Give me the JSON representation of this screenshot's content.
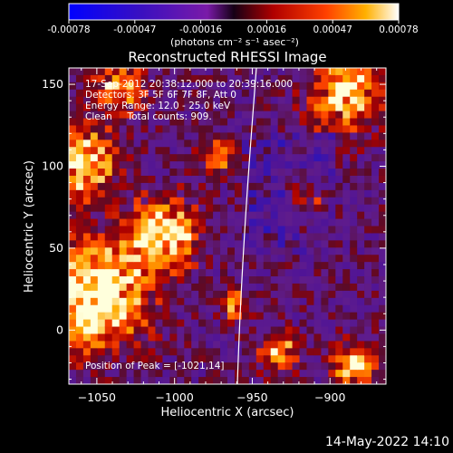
{
  "chart_data": {
    "type": "heatmap",
    "title": "Reconstructed RHESSI Image",
    "xlabel": "Heliocentric X (arcsec)",
    "ylabel": "Heliocentric Y (arcsec)",
    "xlim": [
      -1068,
      -864
    ],
    "ylim": [
      -33,
      160
    ],
    "xticks": [
      -1050,
      -1000,
      -950,
      -900
    ],
    "yticks": [
      0,
      50,
      100,
      150
    ],
    "colorbar": {
      "label": "(photons cm⁻² s⁻¹ asec⁻²)",
      "range": [
        -0.00078,
        0.00078
      ],
      "ticks": [
        "-0.00078",
        "-0.00047",
        "-0.00016",
        "0.00016",
        "0.00047",
        "0.00078"
      ]
    },
    "info_lines": [
      "17-Sep-2012 20:38:12.000 to 20:39:16.000",
      "Detectors: 3F 5F 6F 7F 8F, Att 0",
      "Energy Range: 12.0 - 25.0 keV",
      "Clean     Total counts: 909."
    ],
    "peak_text": "Position of Peak = [-1021,14]",
    "peak_position": [
      -1021,
      14
    ]
  },
  "footer": {
    "timestamp": "14-May-2022 14:10"
  },
  "colors": {
    "background": "#000000",
    "text": "#ffffff"
  }
}
